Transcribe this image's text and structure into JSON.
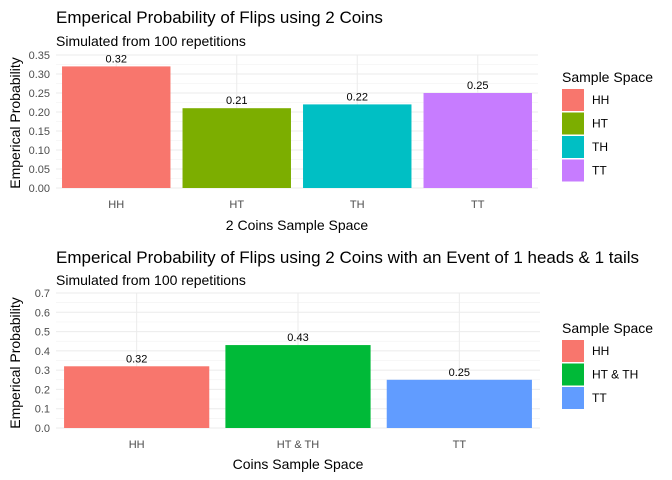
{
  "chart_data": [
    {
      "type": "bar",
      "title": "Emperical Probability of Flips using 2 Coins",
      "subtitle": "Simulated from 100 repetitions",
      "xlabel": "2 Coins Sample Space",
      "ylabel": "Emperical Probability",
      "categories": [
        "HH",
        "HT",
        "TH",
        "TT"
      ],
      "values": [
        0.32,
        0.21,
        0.22,
        0.25
      ],
      "value_labels": [
        "0.32",
        "0.21",
        "0.22",
        "0.25"
      ],
      "colors": [
        "#F8766D",
        "#7CAE00",
        "#00BFC4",
        "#C77CFF"
      ],
      "ylim": [
        0,
        0.35
      ],
      "yticks": [
        0.0,
        0.05,
        0.1,
        0.15,
        0.2,
        0.25,
        0.3,
        0.35
      ],
      "ytick_labels": [
        "0.00",
        "0.05",
        "0.10",
        "0.15",
        "0.20",
        "0.25",
        "0.30",
        "0.35"
      ],
      "grid": true,
      "legend": {
        "title": "Sample Space",
        "position": "right",
        "entries": [
          "HH",
          "HT",
          "TH",
          "TT"
        ]
      }
    },
    {
      "type": "bar",
      "title": "Emperical Probability of Flips using 2 Coins with an Event of 1 heads & 1 tails",
      "subtitle": "Simulated from 100 repetitions",
      "xlabel": "Coins Sample Space",
      "ylabel": "Emperical Probability",
      "categories": [
        "HH",
        "HT & TH",
        "TT"
      ],
      "values": [
        0.32,
        0.43,
        0.25
      ],
      "value_labels": [
        "0.32",
        "0.43",
        "0.25"
      ],
      "colors": [
        "#F8766D",
        "#00BA38",
        "#619CFF"
      ],
      "ylim": [
        0,
        0.7
      ],
      "yticks": [
        0.0,
        0.1,
        0.2,
        0.3,
        0.4,
        0.5,
        0.6,
        0.7
      ],
      "ytick_labels": [
        "0.0",
        "0.1",
        "0.2",
        "0.3",
        "0.4",
        "0.5",
        "0.6",
        "0.7"
      ],
      "grid": true,
      "legend": {
        "title": "Sample Space",
        "position": "right",
        "entries": [
          "HH",
          "HT & TH",
          "TT"
        ]
      }
    }
  ]
}
